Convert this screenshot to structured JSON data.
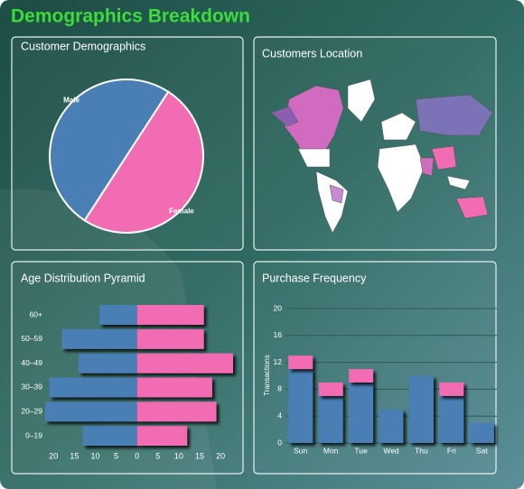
{
  "title": "Demographics Breakdown",
  "map": {
    "title": "Customers Location"
  },
  "chart_data": [
    {
      "type": "pie",
      "title": "Customer Demographics",
      "categories": [
        "Male",
        "Female"
      ],
      "values": [
        50,
        50
      ],
      "colors": [
        "#4a7fb5",
        "#f26cb3"
      ]
    },
    {
      "type": "pyramid",
      "title": "Age Distribution Pyramid",
      "categories": [
        "0–19",
        "20–29",
        "30–39",
        "40–49",
        "50–59",
        "60+"
      ],
      "series": [
        {
          "color": "#4a7fb5",
          "values": [
            -13,
            -22,
            -21,
            -14,
            -18,
            -9
          ]
        },
        {
          "color": "#f26cb3",
          "values": [
            12,
            19,
            18,
            23,
            16,
            16
          ]
        }
      ],
      "xlim": [
        -22,
        23
      ],
      "xticks": [
        {
          "value": -20,
          "label": "20"
        },
        {
          "value": -15,
          "label": "15"
        },
        {
          "value": -10,
          "label": "10"
        },
        {
          "value": -5,
          "label": "5"
        },
        0,
        5,
        10,
        15,
        20
      ]
    },
    {
      "type": "bar",
      "stacked": true,
      "title": "Purchase Frequency",
      "ylabel": "Transactions",
      "categories": [
        "Sun",
        "Mon",
        "Tue",
        "Wed",
        "Thu",
        "Fri",
        "Sat"
      ],
      "series": [
        {
          "color": "#4a7fb5",
          "values": [
            11,
            7,
            9,
            5,
            10,
            7,
            3
          ]
        },
        {
          "color": "#f26cb3",
          "values": [
            2,
            2,
            2,
            0,
            0,
            2,
            0
          ]
        }
      ],
      "ylim": [
        0,
        20
      ],
      "yticks": [
        0,
        4,
        8,
        12,
        16,
        20
      ],
      "grid": true
    }
  ]
}
